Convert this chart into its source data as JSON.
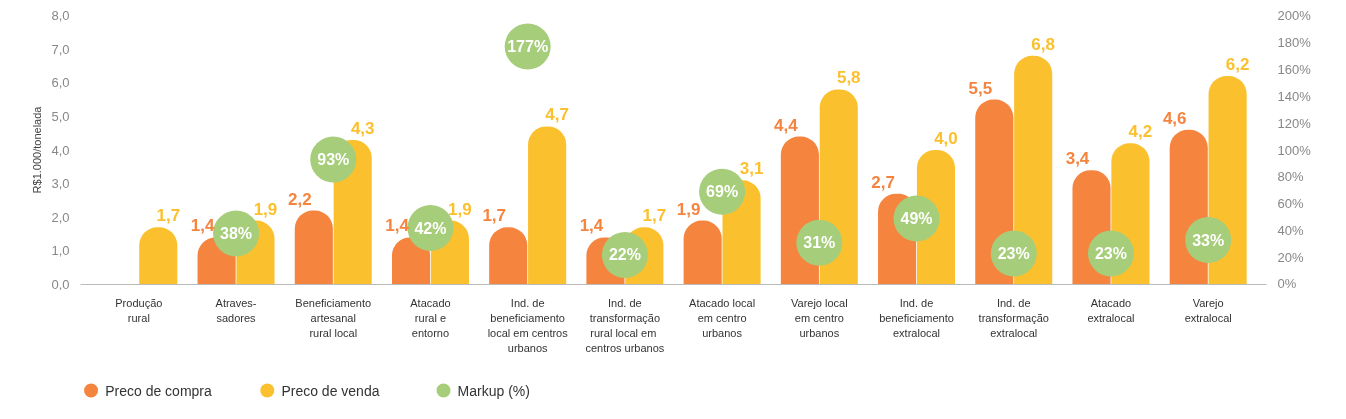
{
  "chart_data": {
    "type": "bar",
    "ylabel": "R$1.000/tonelada",
    "categories": [
      "Produção\nrural",
      "Atraves-\nsadores",
      "Beneficiamento\nartesanal\nrural local",
      "Atacado\nrural e\nentorno",
      "Ind. de\nbeneficiamento\nlocal em centros\nurbanos",
      "Ind. de\ntransformação\nrural local  em\ncentros urbanos",
      "Atacado local\nem centro\nurbanos",
      "Varejo local\nem centro\nurbanos",
      "Ind. de\nbeneficiamento\nextralocal",
      "Ind. de\ntransformação\nextralocal",
      "Atacado\nextralocal",
      "Varejo\nextralocal"
    ],
    "series": [
      {
        "name": "Preco de compra",
        "color": "#f5843f",
        "values": [
          null,
          1.4,
          2.2,
          1.4,
          1.7,
          1.4,
          1.9,
          4.4,
          2.7,
          5.5,
          3.4,
          4.6
        ],
        "value_labels": [
          null,
          "1,4",
          "2,2",
          "1,4",
          "1,7",
          "1,4",
          "1,9",
          "4,4",
          "2,7",
          "5,5",
          "3,4",
          "4,6"
        ]
      },
      {
        "name": "Preco de venda",
        "color": "#fbc02d",
        "values": [
          1.7,
          1.9,
          4.3,
          1.9,
          4.7,
          1.7,
          3.1,
          5.8,
          4.0,
          6.8,
          4.2,
          6.2
        ],
        "value_labels": [
          "1,7",
          "1,9",
          "4,3",
          "1,9",
          "4,7",
          "1,7",
          "3,1",
          "5,8",
          "4,0",
          "6,8",
          "4,2",
          "6,2"
        ]
      },
      {
        "name": "Markup (%)",
        "type": "scatter",
        "axis": "y2",
        "color": "#a6cd7a",
        "values": [
          null,
          38,
          93,
          42,
          177,
          22,
          69,
          31,
          49,
          23,
          23,
          33
        ],
        "value_labels": [
          null,
          "38%",
          "93%",
          "42%",
          "177%",
          "22%",
          "69%",
          "31%",
          "49%",
          "23%",
          "23%",
          "33%"
        ]
      }
    ],
    "ylim": [
      0,
      8
    ],
    "yticks": [
      {
        "value": 0,
        "label": "0,0"
      },
      {
        "value": 1,
        "label": "1,0"
      },
      {
        "value": 2,
        "label": "2,0"
      },
      {
        "value": 3,
        "label": "3,0"
      },
      {
        "value": 4,
        "label": "4,0"
      },
      {
        "value": 5,
        "label": "5,0"
      },
      {
        "value": 6,
        "label": "6,0"
      },
      {
        "value": 7,
        "label": "7,0"
      },
      {
        "value": 8,
        "label": "8,0"
      }
    ],
    "y2lim": [
      0,
      200
    ],
    "y2ticks": [
      {
        "value": 0,
        "label": "0%"
      },
      {
        "value": 20,
        "label": "20%"
      },
      {
        "value": 40,
        "label": "40%"
      },
      {
        "value": 60,
        "label": "60%"
      },
      {
        "value": 80,
        "label": "80%"
      },
      {
        "value": 100,
        "label": "100%"
      },
      {
        "value": 120,
        "label": "120%"
      },
      {
        "value": 140,
        "label": "140%"
      },
      {
        "value": 160,
        "label": "160%"
      },
      {
        "value": 180,
        "label": "180%"
      },
      {
        "value": 200,
        "label": "200%"
      }
    ],
    "marker": "circle",
    "grid": false,
    "legend": "bottom left"
  }
}
